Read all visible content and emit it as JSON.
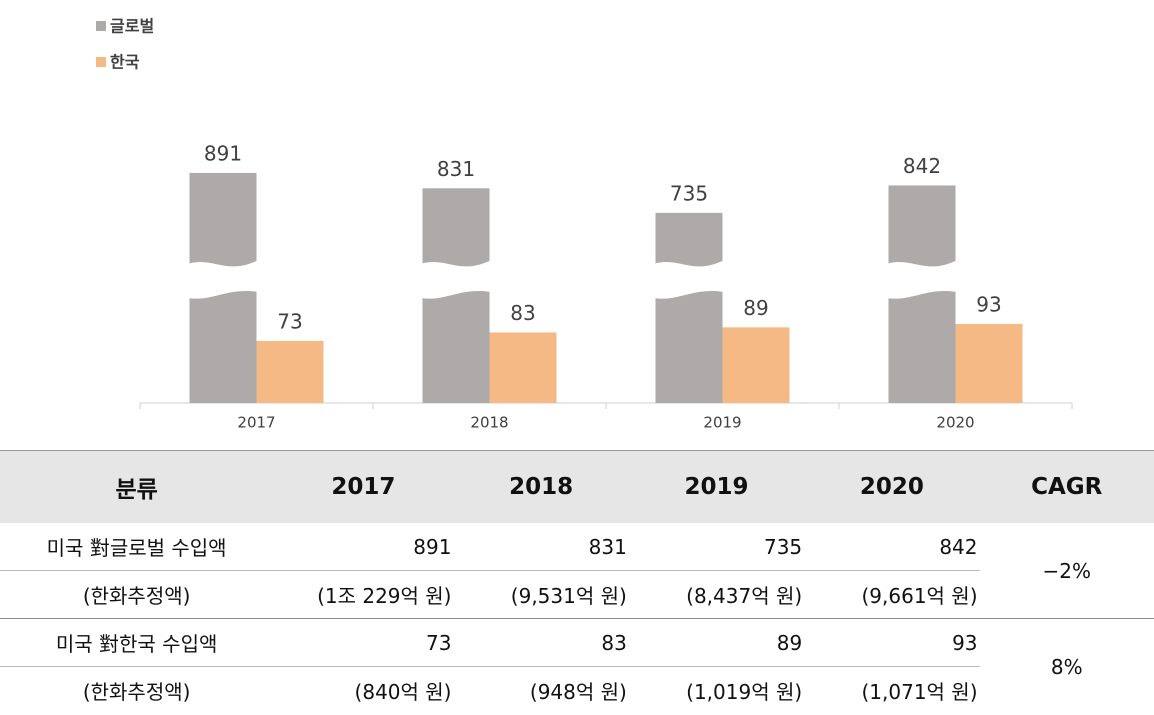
{
  "chart_data": {
    "type": "bar",
    "broken_axis": true,
    "legend": "top-left",
    "categories": [
      "2017",
      "2018",
      "2019",
      "2020"
    ],
    "series": [
      {
        "name": "글로벌",
        "color": "#aeaaaa",
        "values": [
          891,
          831,
          735,
          842
        ]
      },
      {
        "name": "한국",
        "color": "#f4b984",
        "values": [
          73,
          83,
          89,
          93
        ]
      }
    ]
  },
  "table": {
    "header": [
      "분류",
      "2017",
      "2018",
      "2019",
      "2020",
      "CAGR"
    ],
    "rows": [
      [
        "미국 對글로벌 수입액",
        "891",
        "831",
        "735",
        "842",
        "−2%"
      ],
      [
        "(한화추정액)",
        "(1조 229억 원)",
        "(9,531억 원)",
        "(8,437억 원)",
        "(9,661억 원)"
      ],
      [
        "미국 對한국 수입액",
        "73",
        "83",
        "89",
        "93",
        "8%"
      ],
      [
        "(한화추정액)",
        "(840억 원)",
        "(948억 원)",
        "(1,019억 원)",
        "(1,071억 원)"
      ]
    ]
  }
}
